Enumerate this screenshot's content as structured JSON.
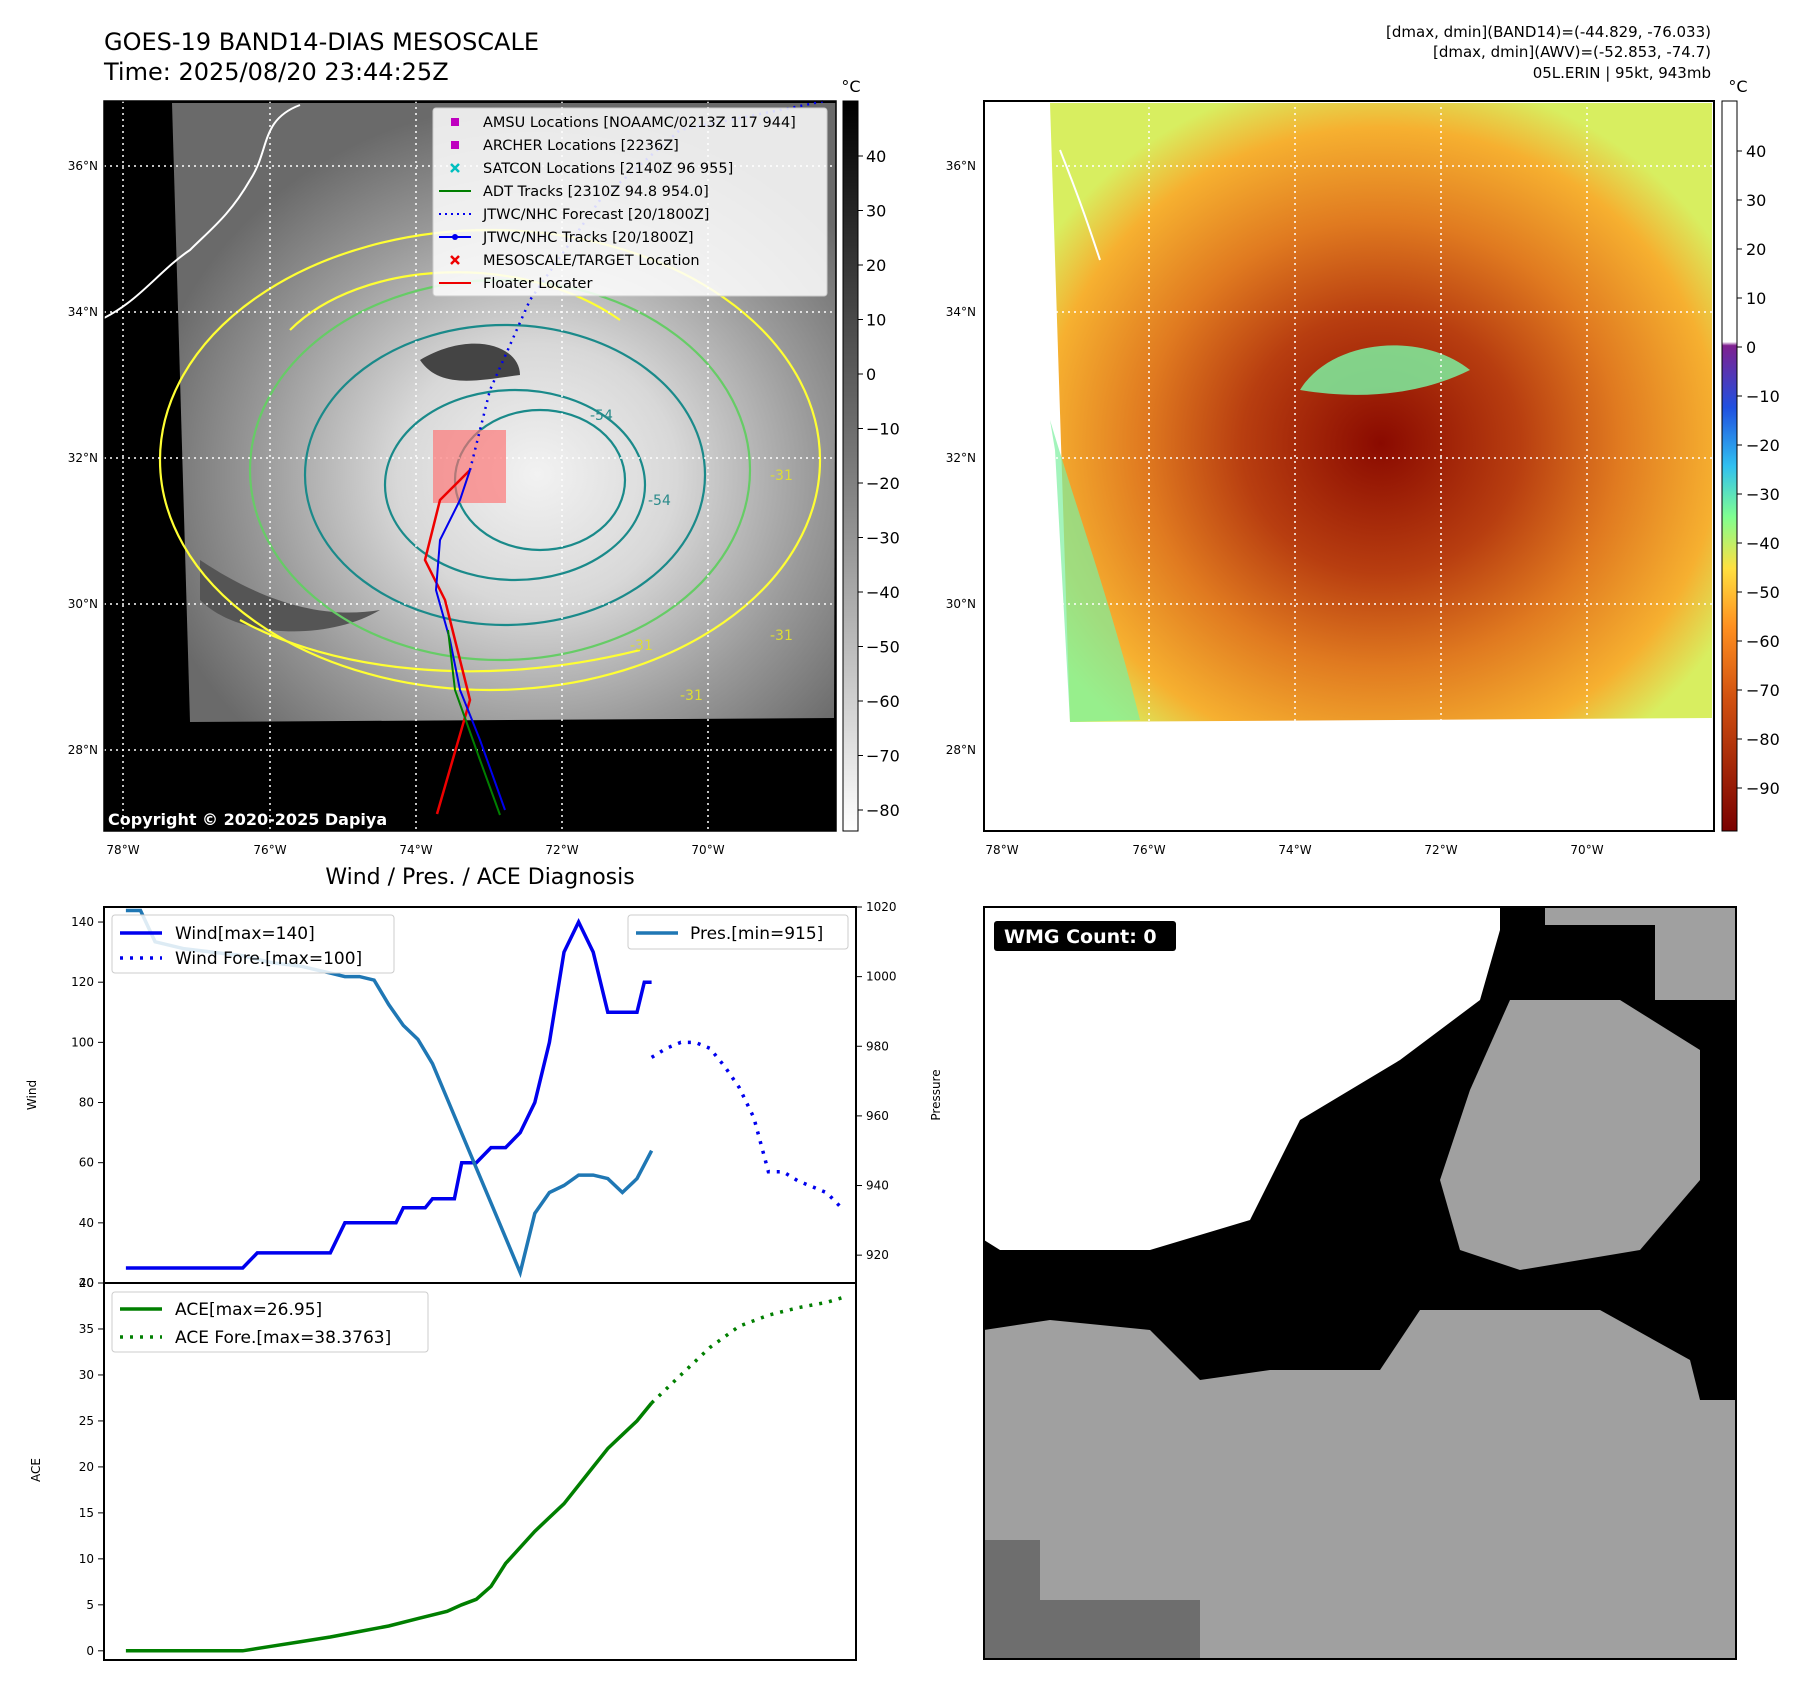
{
  "header": {
    "title_line1": "GOES-19 BAND14-DIAS MESOSCALE",
    "title_line2": "Time: 2025/08/20 23:44:25Z",
    "info_line1": "[dmax, dmin](BAND14)=(-44.829, -76.033)",
    "info_line2": "[dmax, dmin](AWV)=(-52.853, -74.7)",
    "info_line3": "05L.ERIN | 95kt, 943mb"
  },
  "colors": {
    "wind": "#0000ee",
    "pressure": "#1f77b4",
    "ace": "#007f00",
    "floater": "#ee0000",
    "amsu": "#bf00bf",
    "satcon": "#00bfbf",
    "contour_yellow": "#ffff33",
    "contour_teal": "#1a8a8a",
    "contour_green": "#66cc66"
  },
  "map": {
    "lon_ticks": [
      "78°W",
      "76°W",
      "74°W",
      "72°W",
      "70°W"
    ],
    "lat_ticks": [
      "36°N",
      "34°N",
      "32°N",
      "30°N",
      "28°N"
    ],
    "copyright": "Copyright © 2020-2025 Dapiya",
    "contour_labels": [
      "-54",
      "-31",
      "-31",
      "-31",
      "-31",
      "-54"
    ],
    "legend": [
      {
        "label": "AMSU Locations [NOAAMC/0213Z 117 944]",
        "marker": "square",
        "color": "#bf00bf"
      },
      {
        "label": "ARCHER Locations [2236Z]",
        "marker": "square",
        "color": "#bf00bf"
      },
      {
        "label": "SATCON Locations [2140Z 96 955]",
        "marker": "x",
        "color": "#00bfbf"
      },
      {
        "label": "ADT Tracks [2310Z 94.8 954.0]",
        "marker": "line",
        "color": "#007f00"
      },
      {
        "label": "JTWC/NHC Forecast [20/1800Z]",
        "marker": "dotted",
        "color": "#0000ee"
      },
      {
        "label": "JTWC/NHC Tracks [20/1800Z]",
        "marker": "line-dot",
        "color": "#0000ee"
      },
      {
        "label": "MESOSCALE/TARGET Location",
        "marker": "x",
        "color": "#ee0000"
      },
      {
        "label": "Floater Locater",
        "marker": "line",
        "color": "#ee0000"
      }
    ]
  },
  "colorbar_ir": {
    "unit": "°C",
    "ticks": [
      "40",
      "30",
      "20",
      "10",
      "0",
      "−10",
      "−20",
      "−30",
      "−40",
      "−50",
      "−60",
      "−70",
      "−80"
    ]
  },
  "colorbar_wv": {
    "unit": "°C",
    "ticks": [
      "40",
      "30",
      "20",
      "10",
      "0",
      "−10",
      "−20",
      "−30",
      "−40",
      "−50",
      "−60",
      "−70",
      "−80",
      "−90"
    ]
  },
  "wmg": {
    "label": "WMG Count: 0"
  },
  "chart_data": [
    {
      "type": "line",
      "title": "Wind / Pres. / ACE Diagnosis",
      "ylabel": "Wind",
      "ylim": [
        20,
        145
      ],
      "yticks": [
        "20",
        "40",
        "60",
        "80",
        "100",
        "120",
        "140"
      ],
      "y2label": "Pressure",
      "y2lim": [
        912,
        1020
      ],
      "y2ticks": [
        "920",
        "940",
        "960",
        "980",
        "1000",
        "1020"
      ],
      "series": [
        {
          "name": "Wind[max=140]",
          "axis": "left",
          "style": "solid",
          "x": [
            0,
            10,
            12,
            16,
            18,
            20,
            28,
            30,
            32,
            34,
            36,
            37,
            38,
            39,
            40,
            41,
            42,
            43,
            44,
            45,
            46,
            47,
            48,
            50,
            52,
            54,
            56,
            58,
            60,
            62,
            64,
            66,
            68,
            70,
            71,
            72
          ],
          "values": [
            25,
            25,
            25,
            25,
            30,
            30,
            30,
            40,
            40,
            40,
            40,
            40,
            45,
            45,
            45,
            45,
            48,
            48,
            48,
            48,
            60,
            60,
            60,
            65,
            65,
            70,
            80,
            100,
            130,
            140,
            130,
            110,
            110,
            110,
            120,
            120
          ]
        },
        {
          "name": "Wind Fore.[max=100]",
          "axis": "left",
          "style": "dotted",
          "x": [
            72,
            74,
            76,
            78,
            80,
            82,
            84,
            86,
            88,
            90,
            92,
            94,
            96,
            98
          ],
          "values": [
            95,
            98,
            100,
            100,
            98,
            92,
            85,
            75,
            57,
            57,
            54,
            52,
            50,
            45
          ]
        },
        {
          "name": "Pres.[min=915]",
          "axis": "right",
          "style": "solid",
          "x": [
            0,
            2,
            4,
            8,
            12,
            16,
            18,
            20,
            24,
            26,
            28,
            30,
            32,
            34,
            36,
            38,
            40,
            42,
            44,
            46,
            48,
            50,
            52,
            54,
            56,
            58,
            60,
            62,
            64,
            66,
            68,
            70,
            72
          ],
          "values": [
            1019,
            1019,
            1010,
            1008,
            1007,
            1006,
            1005,
            1004,
            1003,
            1002,
            1001,
            1000,
            1000,
            999,
            992,
            986,
            982,
            975,
            965,
            955,
            945,
            935,
            925,
            915,
            932,
            938,
            940,
            943,
            943,
            942,
            938,
            942,
            950
          ]
        }
      ]
    },
    {
      "type": "line",
      "ylabel": "ACE",
      "ylim": [
        -1,
        40
      ],
      "yticks": [
        "0",
        "5",
        "10",
        "15",
        "20",
        "25",
        "30",
        "35",
        "40"
      ],
      "series": [
        {
          "name": "ACE[max=26.95]",
          "style": "solid",
          "x": [
            0,
            8,
            16,
            20,
            24,
            28,
            32,
            36,
            40,
            44,
            46,
            48,
            50,
            52,
            56,
            60,
            64,
            66,
            68,
            70,
            72
          ],
          "values": [
            0,
            0,
            0,
            0.5,
            1,
            1.5,
            2.1,
            2.7,
            3.5,
            4.3,
            5,
            5.6,
            7,
            9.5,
            13,
            16,
            20,
            22,
            23.5,
            25,
            26.95
          ]
        },
        {
          "name": "ACE Fore.[max=38.3763]",
          "style": "dotted",
          "x": [
            72,
            76,
            80,
            84,
            88,
            92,
            96,
            98
          ],
          "values": [
            26.95,
            30,
            33,
            35.3,
            36.5,
            37.3,
            37.9,
            38.38
          ]
        }
      ]
    }
  ]
}
